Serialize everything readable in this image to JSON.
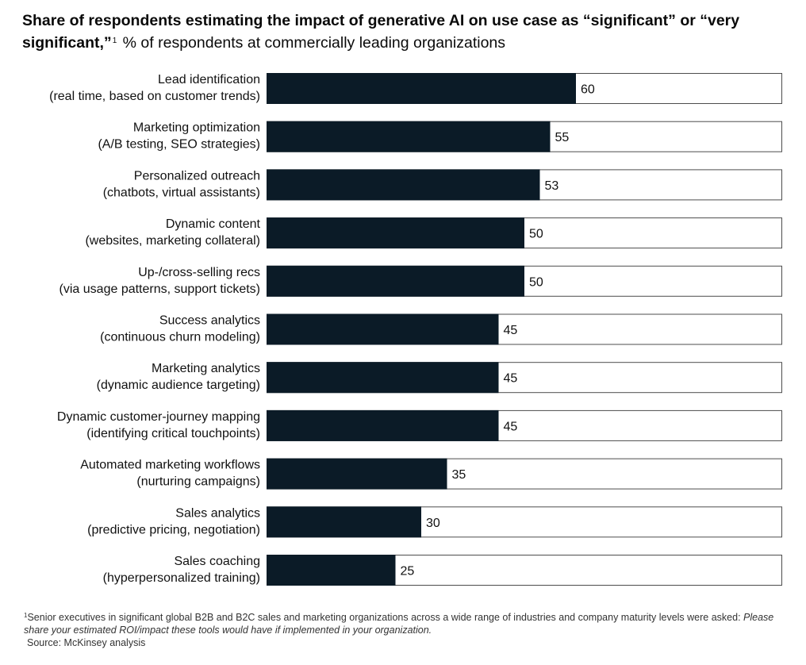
{
  "title": {
    "bold": "Share of respondents estimating the impact of generative AI on use case as “significant” or “very significant,”",
    "footnote_marker": "1",
    "subtitle": "% of respondents at commercially leading organizations"
  },
  "footnote": {
    "marker": "1",
    "text": "Senior executives in significant global B2B and B2C sales and marketing organizations across a wide range of industries and company maturity levels were asked:",
    "question": "Please share your estimated ROI/impact these tools would have if implemented in your organization.",
    "source": "Source: McKinsey analysis"
  },
  "colors": {
    "bar_fill": "#0b1b27",
    "track_border": "#4d4d4d",
    "track_fill": "#ffffff"
  },
  "chart_data": {
    "type": "bar",
    "orientation": "horizontal",
    "title": "Share of respondents estimating the impact of generative AI on use case as “significant” or “very significant,”",
    "subtitle": "% of respondents at commercially leading organizations",
    "categories": [
      [
        "Lead identification",
        "(real time, based on customer trends)"
      ],
      [
        "Marketing optimization",
        "(A/B testing, SEO strategies)"
      ],
      [
        "Personalized outreach",
        "(chatbots, virtual assistants)"
      ],
      [
        "Dynamic content",
        "(websites, marketing collateral)"
      ],
      [
        "Up-/cross-selling recs",
        "(via usage patterns, support tickets)"
      ],
      [
        "Success analytics",
        "(continuous churn modeling)"
      ],
      [
        "Marketing analytics",
        "(dynamic audience targeting)"
      ],
      [
        "Dynamic customer-journey mapping",
        "(identifying critical touchpoints)"
      ],
      [
        "Automated marketing workflows",
        "(nurturing campaigns)"
      ],
      [
        "Sales analytics",
        "(predictive pricing, negotiation)"
      ],
      [
        "Sales coaching",
        "(hyperpersonalized training)"
      ]
    ],
    "values": [
      60,
      55,
      53,
      50,
      50,
      45,
      45,
      45,
      35,
      30,
      25
    ],
    "xlim": [
      0,
      100
    ],
    "grid": false,
    "legend": "none"
  }
}
